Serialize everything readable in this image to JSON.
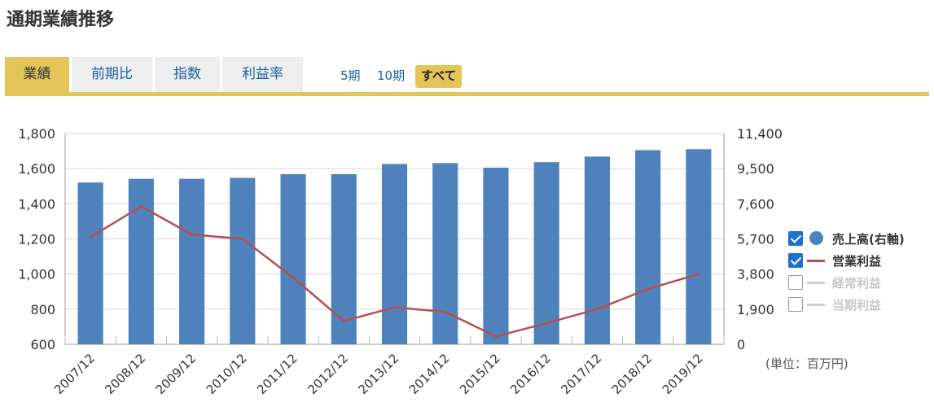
{
  "page": {
    "title": "通期業績推移"
  },
  "tabs": [
    {
      "label": "業績",
      "active": true
    },
    {
      "label": "前期比",
      "active": false
    },
    {
      "label": "指数",
      "active": false
    },
    {
      "label": "利益率",
      "active": false
    }
  ],
  "periods": [
    {
      "label": "5期",
      "active": false
    },
    {
      "label": "10期",
      "active": false
    },
    {
      "label": "すべて",
      "active": true
    }
  ],
  "legend": [
    {
      "label": "売上高(右軸)",
      "checked": true,
      "symbol": "dot",
      "color": "#4f81bd"
    },
    {
      "label": "営業利益",
      "checked": true,
      "symbol": "line",
      "color": "#b5504c"
    },
    {
      "label": "経常利益",
      "checked": false,
      "symbol": "line",
      "color": "#d0d0d0"
    },
    {
      "label": "当期利益",
      "checked": false,
      "symbol": "line",
      "color": "#d0d0d0"
    }
  ],
  "unit_note": "(単位：百万円)",
  "colors": {
    "accent": "#e3c55a",
    "bar": "#4f81bd",
    "line": "#b5504c",
    "link": "#1f5fa8"
  },
  "chart_data": {
    "type": "bar",
    "categories": [
      "2007/12",
      "2008/12",
      "2009/12",
      "2010/12",
      "2011/12",
      "2012/12",
      "2013/12",
      "2014/12",
      "2015/12",
      "2016/12",
      "2017/12",
      "2018/12",
      "2019/12"
    ],
    "series": [
      {
        "name": "売上高(右軸)",
        "type": "bar",
        "axis": "right",
        "values": [
          8750,
          8950,
          8950,
          9000,
          9200,
          9200,
          9750,
          9800,
          9550,
          9850,
          10150,
          10500,
          10550
        ]
      },
      {
        "name": "営業利益",
        "type": "line",
        "axis": "left",
        "values": [
          1210,
          1385,
          1225,
          1200,
          980,
          733,
          810,
          785,
          645,
          720,
          800,
          915,
          1000
        ]
      }
    ],
    "left_axis": {
      "ylim": [
        600,
        1800
      ],
      "ticks": [
        "600",
        "800",
        "1,000",
        "1,200",
        "1,400",
        "1,600",
        "1,800"
      ]
    },
    "right_axis": {
      "ylim": [
        0,
        11400
      ],
      "ticks": [
        "0",
        "1,900",
        "3,800",
        "5,700",
        "7,600",
        "9,500",
        "11,400"
      ]
    },
    "grid": true,
    "legend_position": "right"
  }
}
